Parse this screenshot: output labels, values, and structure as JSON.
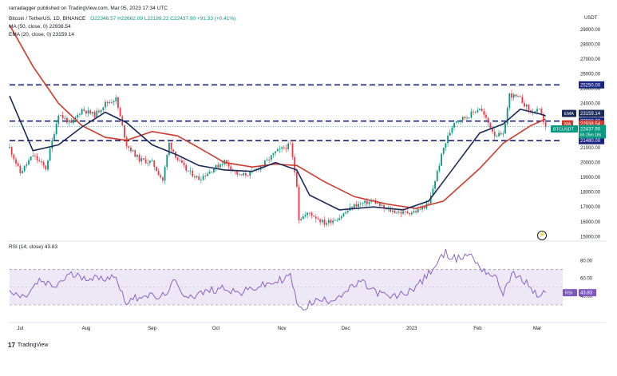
{
  "header": {
    "published": "rarradagger published on TradingView.com, Mar 05, 2023 17:34 UTC",
    "symbol_line": "Bitcoin / TetherUS, 1D, BINANCE",
    "ohlc": "O22346.57  H22662.09  L22189.22  C22437.90  +91.33 (+0.41%)",
    "ma_line": "MA (50, close, 0)  22938.54",
    "ema_line": "EMA (20, close, 0)  23159.14",
    "rsi_line": "RSI (14, close)  43.83",
    "currency": "USDT"
  },
  "footer": {
    "logo_text": "TradingView"
  },
  "colors": {
    "up": "#089981",
    "down": "#f23645",
    "ema": "#1c2b5a",
    "ma": "#d03a2c",
    "rsi": "#7e57c2",
    "level": "#1a237e",
    "rsi_band": "#ede7f6"
  },
  "labels": {
    "ema_tag": "EMA",
    "ma_tag": "MA",
    "btc_tag": "BTCUSDT",
    "rsi_tag": "RSI",
    "ema_value": "23159.14",
    "ma_value": "22938.54",
    "price_value": "22437.90",
    "countdown": "6h 25m 18s",
    "rsi_value": "43.83"
  },
  "chart_data": [
    {
      "type": "candlestick",
      "title": "Bitcoin / TetherUS, 1D, BINANCE",
      "ylabel": "USDT",
      "y_axis_scale": "linear",
      "ylim": [
        14800,
        29800
      ],
      "y_ticks": [
        15000,
        16000,
        17000,
        18000,
        19000,
        20000,
        21000,
        22000,
        23000,
        24000,
        25000,
        26000,
        27000,
        28000,
        29000
      ],
      "y_tick_labels": [
        "15000.00",
        "16000.00",
        "17000.00",
        "18000.00",
        "19000.00",
        "20000.00",
        "21000.00",
        "22000.00",
        "23000.00",
        "24000.00",
        "25000.00",
        "26000.00",
        "27000.00",
        "28000.00",
        "29000.00"
      ],
      "x_tick_labels": [
        "Jul",
        "Aug",
        "Sep",
        "Oct",
        "Nov",
        "Dec",
        "2023",
        "Feb",
        "Mar"
      ],
      "x_tick_dates": [
        "2022-07-01",
        "2022-08-01",
        "2022-09-01",
        "2022-10-01",
        "2022-11-01",
        "2022-12-01",
        "2023-01-01",
        "2023-02-01",
        "2023-03-01"
      ],
      "x_range": [
        "2022-06-26",
        "2023-03-10"
      ],
      "horizontal_levels": [
        {
          "value": 25250,
          "label": "25250.00",
          "style": "dashed"
        },
        {
          "value": 22800,
          "label": "22800.00",
          "style": "dashed"
        },
        {
          "value": 21480,
          "label": "21480.00",
          "style": "dashed"
        }
      ],
      "grid": false,
      "series": [
        {
          "name": "Bitcoin / TetherUS",
          "kind": "close_approx",
          "x": [
            "2022-06-26",
            "2022-07-01",
            "2022-07-07",
            "2022-07-13",
            "2022-07-19",
            "2022-07-25",
            "2022-07-30",
            "2022-08-05",
            "2022-08-10",
            "2022-08-15",
            "2022-08-20",
            "2022-08-26",
            "2022-09-01",
            "2022-09-06",
            "2022-09-09",
            "2022-09-13",
            "2022-09-17",
            "2022-09-23",
            "2022-09-29",
            "2022-10-05",
            "2022-10-12",
            "2022-10-18",
            "2022-10-25",
            "2022-10-29",
            "2022-11-05",
            "2022-11-08",
            "2022-11-09",
            "2022-11-14",
            "2022-11-21",
            "2022-11-28",
            "2022-12-05",
            "2022-12-14",
            "2022-12-20",
            "2022-12-28",
            "2023-01-03",
            "2023-01-09",
            "2023-01-12",
            "2023-01-16",
            "2023-01-21",
            "2023-01-27",
            "2023-02-02",
            "2023-02-09",
            "2023-02-13",
            "2023-02-16",
            "2023-02-21",
            "2023-02-26",
            "2023-03-02",
            "2023-03-05"
          ],
          "values": [
            21000,
            19300,
            20500,
            19600,
            23300,
            22600,
            23600,
            23200,
            24000,
            24300,
            21200,
            20200,
            20000,
            18800,
            21300,
            20200,
            19500,
            18900,
            19500,
            20100,
            19100,
            19300,
            20100,
            20700,
            21200,
            18500,
            16200,
            16600,
            15900,
            16300,
            17100,
            17400,
            16800,
            16600,
            16700,
            17200,
            18800,
            21000,
            22800,
            23100,
            23700,
            21900,
            21800,
            24600,
            24300,
            23400,
            23500,
            22437.9
          ]
        },
        {
          "name": "EMA (20, close, 0)",
          "x": [
            "2022-06-26",
            "2022-07-07",
            "2022-07-19",
            "2022-07-30",
            "2022-08-10",
            "2022-08-20",
            "2022-09-01",
            "2022-09-13",
            "2022-09-23",
            "2022-10-05",
            "2022-10-18",
            "2022-10-29",
            "2022-11-08",
            "2022-11-14",
            "2022-11-28",
            "2022-12-14",
            "2022-12-28",
            "2023-01-09",
            "2023-01-21",
            "2023-02-02",
            "2023-02-13",
            "2023-02-21",
            "2023-03-02",
            "2023-03-05"
          ],
          "values": [
            24500,
            20800,
            21200,
            22400,
            23400,
            22700,
            21200,
            20500,
            19800,
            19500,
            19400,
            20000,
            19500,
            17800,
            16800,
            17000,
            16800,
            17400,
            19700,
            22000,
            22600,
            23600,
            23300,
            23159.14
          ]
        },
        {
          "name": "MA (50, close, 0)",
          "x": [
            "2022-06-26",
            "2022-07-07",
            "2022-07-19",
            "2022-07-30",
            "2022-08-10",
            "2022-08-20",
            "2022-09-01",
            "2022-09-13",
            "2022-09-23",
            "2022-10-05",
            "2022-10-18",
            "2022-10-29",
            "2022-11-08",
            "2022-11-21",
            "2022-12-05",
            "2022-12-20",
            "2023-01-03",
            "2023-01-16",
            "2023-02-02",
            "2023-02-13",
            "2023-02-26",
            "2023-03-05"
          ],
          "values": [
            29300,
            26500,
            24000,
            22500,
            21700,
            21500,
            22100,
            21800,
            21000,
            20000,
            19700,
            19900,
            19800,
            18700,
            17700,
            17200,
            16900,
            17400,
            19600,
            21300,
            22500,
            22938.54
          ]
        }
      ]
    },
    {
      "type": "line",
      "title": "RSI (14, close)",
      "ylim": [
        12,
        102
      ],
      "y_ticks": [
        40,
        60,
        80
      ],
      "y_tick_labels": [
        "40.00",
        "60.00",
        "80.00"
      ],
      "band": [
        30,
        70
      ],
      "x_range": [
        "2022-06-26",
        "2023-03-10"
      ],
      "grid": false,
      "series": [
        {
          "name": "RSI (14, close)",
          "x": [
            "2022-06-26",
            "2022-07-03",
            "2022-07-10",
            "2022-07-17",
            "2022-07-24",
            "2022-07-31",
            "2022-08-08",
            "2022-08-14",
            "2022-08-20",
            "2022-08-28",
            "2022-09-05",
            "2022-09-12",
            "2022-09-14",
            "2022-09-20",
            "2022-09-28",
            "2022-10-05",
            "2022-10-12",
            "2022-10-20",
            "2022-10-28",
            "2022-11-05",
            "2022-11-09",
            "2022-11-16",
            "2022-11-24",
            "2022-12-01",
            "2022-12-08",
            "2022-12-15",
            "2022-12-22",
            "2022-12-30",
            "2023-01-06",
            "2023-01-12",
            "2023-01-17",
            "2023-01-22",
            "2023-01-28",
            "2023-02-03",
            "2023-02-09",
            "2023-02-13",
            "2023-02-17",
            "2023-02-24",
            "2023-03-01",
            "2023-03-05"
          ],
          "values": [
            44,
            38,
            57,
            50,
            64,
            62,
            59,
            64,
            33,
            42,
            37,
            57,
            44,
            40,
            46,
            50,
            43,
            50,
            55,
            63,
            24,
            34,
            36,
            45,
            56,
            45,
            38,
            44,
            57,
            74,
            89,
            81,
            88,
            71,
            62,
            44,
            65,
            55,
            40,
            43.83
          ]
        }
      ]
    }
  ]
}
